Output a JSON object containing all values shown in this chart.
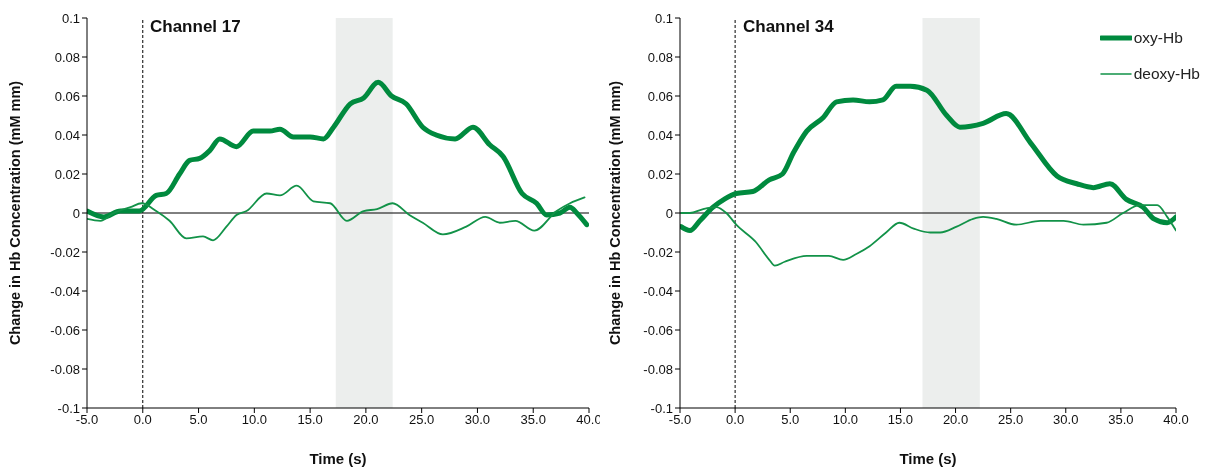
{
  "chart_data": [
    {
      "type": "line",
      "title": "Channel 17",
      "xlabel": "Time (s)",
      "ylabel": "Change in Hb Concentration (mM mm)",
      "xlim": [
        -5,
        40
      ],
      "xticks": [
        {
          "value": -5,
          "label": "-5.0"
        },
        {
          "value": 0,
          "label": "0.0"
        },
        {
          "value": 5,
          "label": "5.0"
        },
        {
          "value": 10,
          "label": "10.0"
        },
        {
          "value": 15,
          "label": "15.0"
        },
        {
          "value": 20,
          "label": "20.0"
        },
        {
          "value": 25,
          "label": "25.0"
        },
        {
          "value": 30,
          "label": "30.0"
        },
        {
          "value": 35,
          "label": "35.0"
        },
        {
          "value": 40,
          "label": "40.0"
        }
      ],
      "ylim": [
        -0.1,
        0.1
      ],
      "yticks": [
        -0.1,
        -0.08,
        -0.06,
        -0.04,
        -0.02,
        0,
        0.02,
        0.04,
        0.06,
        0.08,
        0.1
      ],
      "series": [
        {
          "color": "#008a3e",
          "x": [
            -5.0,
            -3.5,
            -2.0,
            -0.3,
            1.2,
            2.1,
            3.3,
            4.2,
            5.1,
            6.0,
            6.9,
            8.4,
            9.9,
            11.4,
            12.3,
            13.5,
            15.0,
            16.2,
            17.1,
            18.6,
            19.8,
            21.1,
            22.3,
            23.6,
            25.1,
            26.3,
            28.0,
            29.6,
            31.1,
            32.3,
            34.0,
            35.3,
            36.2,
            37.4,
            38.3,
            38.9,
            39.8
          ],
          "values": [
            0.001,
            -0.002,
            0.001,
            0.001,
            0.009,
            0.01,
            0.02,
            0.027,
            0.028,
            0.032,
            0.038,
            0.034,
            0.042,
            0.042,
            0.043,
            0.039,
            0.039,
            0.038,
            0.044,
            0.056,
            0.059,
            0.067,
            0.06,
            0.056,
            0.044,
            0.04,
            0.038,
            0.044,
            0.035,
            0.029,
            0.01,
            0.005,
            -0.001,
            0.0,
            0.003,
            0.0,
            -0.006
          ]
        },
        {
          "color": "#129248",
          "x": [
            -5.0,
            -3.8,
            -2.6,
            -1.1,
            -0.1,
            1.2,
            2.4,
            3.9,
            5.4,
            6.3,
            7.5,
            8.4,
            9.3,
            11.1,
            12.3,
            13.8,
            15.3,
            16.8,
            18.3,
            19.8,
            21.0,
            22.4,
            23.9,
            25.1,
            26.9,
            29.0,
            30.7,
            32.0,
            33.4,
            35.1,
            37.1,
            38.3,
            39.6
          ],
          "values": [
            -0.003,
            -0.004,
            0.0,
            0.003,
            0.005,
            0.001,
            -0.004,
            -0.013,
            -0.012,
            -0.014,
            -0.007,
            -0.001,
            0.001,
            0.01,
            0.009,
            0.014,
            0.006,
            0.005,
            -0.004,
            0.001,
            0.002,
            0.005,
            -0.001,
            -0.005,
            -0.011,
            -0.007,
            -0.002,
            -0.005,
            -0.004,
            -0.009,
            0.001,
            0.005,
            0.008
          ]
        }
      ],
      "ref_lines": [
        {
          "axis": "x",
          "value": 0,
          "color": "#000000",
          "line_style": "dashed"
        },
        {
          "axis": "y",
          "value": 0,
          "color": "#000000"
        }
      ],
      "bands": [
        {
          "axis": "x",
          "from": 17.3,
          "to": 22.4,
          "color": "#eceeed"
        }
      ]
    },
    {
      "type": "line",
      "title": "Channel 34",
      "xlabel": "Time (s)",
      "ylabel": "Change in Hb Concentration (mM mm)",
      "xlim": [
        -5,
        40
      ],
      "xticks": [
        {
          "value": -5,
          "label": "-5.0"
        },
        {
          "value": 0,
          "label": "0.0"
        },
        {
          "value": 5,
          "label": "5.0"
        },
        {
          "value": 10,
          "label": "10.0"
        },
        {
          "value": 15,
          "label": "15.0"
        },
        {
          "value": 20,
          "label": "20.0"
        },
        {
          "value": 25,
          "label": "25.0"
        },
        {
          "value": 30,
          "label": "30.0"
        },
        {
          "value": 35,
          "label": "35.0"
        },
        {
          "value": 40,
          "label": "40.0"
        }
      ],
      "ylim": [
        -0.1,
        0.1
      ],
      "yticks": [
        -0.1,
        -0.08,
        -0.06,
        -0.04,
        -0.02,
        0,
        0.02,
        0.04,
        0.06,
        0.08,
        0.1
      ],
      "legend": "top right",
      "series": [
        {
          "name": "oxy-Hb",
          "color": "#008a3e",
          "x": [
            -4.9,
            -4.1,
            -3.2,
            -2.0,
            -1.0,
            0.1,
            1.6,
            3.1,
            4.3,
            5.3,
            6.5,
            8.0,
            9.2,
            10.7,
            12.2,
            13.4,
            14.6,
            15.9,
            17.4,
            19.2,
            20.4,
            22.5,
            24.6,
            26.8,
            29.2,
            31.0,
            32.5,
            34.0,
            35.5,
            37.0,
            38.0,
            39.2,
            40.0
          ],
          "values": [
            -0.007,
            -0.009,
            -0.004,
            0.003,
            0.007,
            0.01,
            0.011,
            0.017,
            0.02,
            0.031,
            0.042,
            0.049,
            0.057,
            0.058,
            0.057,
            0.058,
            0.065,
            0.065,
            0.063,
            0.05,
            0.044,
            0.046,
            0.051,
            0.036,
            0.019,
            0.015,
            0.013,
            0.015,
            0.007,
            0.003,
            -0.003,
            -0.005,
            -0.002
          ]
        },
        {
          "name": "deoxy-Hb",
          "color": "#129248",
          "x": [
            -4.9,
            -4.1,
            -2.9,
            -1.7,
            -0.8,
            0.1,
            1.9,
            3.1,
            3.6,
            4.5,
            6.5,
            8.5,
            9.8,
            11.0,
            12.2,
            13.7,
            14.9,
            16.2,
            17.7,
            18.6,
            20.1,
            21.6,
            22.5,
            23.7,
            25.5,
            27.7,
            29.8,
            31.6,
            33.7,
            35.2,
            36.7,
            38.3,
            39.2,
            40.0
          ],
          "values": [
            0.0,
            0.0,
            0.002,
            0.003,
            0.0,
            -0.006,
            -0.015,
            -0.024,
            -0.027,
            -0.025,
            -0.022,
            -0.022,
            -0.024,
            -0.021,
            -0.017,
            -0.01,
            -0.005,
            -0.008,
            -0.01,
            -0.01,
            -0.007,
            -0.003,
            -0.002,
            -0.003,
            -0.006,
            -0.004,
            -0.004,
            -0.006,
            -0.005,
            0.0,
            0.004,
            0.004,
            -0.002,
            -0.009
          ]
        }
      ],
      "ref_lines": [
        {
          "axis": "x",
          "value": 0,
          "color": "#000000",
          "line_style": "dashed"
        },
        {
          "axis": "y",
          "value": 0,
          "color": "#000000"
        }
      ],
      "bands": [
        {
          "axis": "x",
          "from": 17.0,
          "to": 22.2,
          "color": "#eceeed"
        }
      ]
    }
  ]
}
